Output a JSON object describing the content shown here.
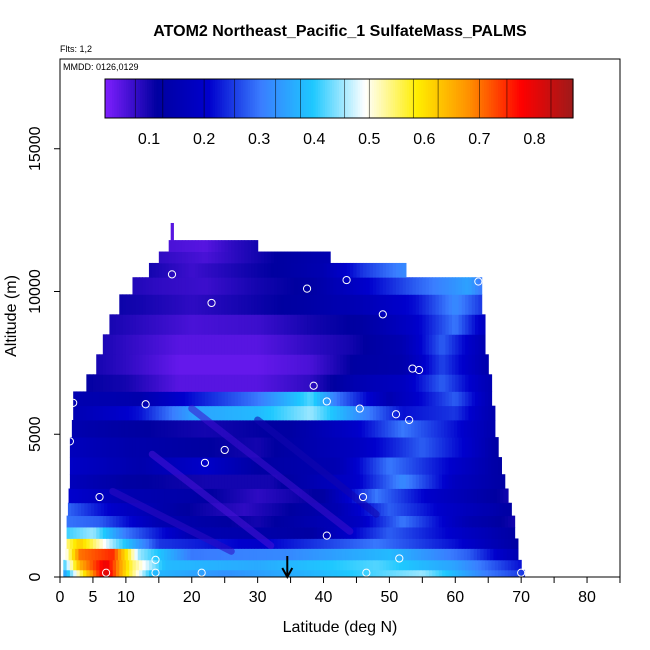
{
  "chart_data": {
    "type": "heatmap",
    "title": "ATOM2 Northeast_Pacific_1 SulfateMass_PALMS",
    "subtitle_flights": "Flts: 1,2",
    "date_label": "MMDD: 0126,0129",
    "xlabel": "Latitude (deg N)",
    "ylabel": "Altitude (m)",
    "xlim": [
      0,
      85
    ],
    "ylim": [
      0,
      17500
    ],
    "x_ticks": [
      0,
      5,
      10,
      20,
      30,
      40,
      50,
      60,
      70,
      80
    ],
    "x_minor_ticks": [
      15,
      25,
      35,
      45,
      55,
      65,
      75,
      85
    ],
    "y_ticks": [
      0,
      5000,
      10000,
      15000
    ],
    "colorbar": {
      "range": [
        0.02,
        0.87
      ],
      "ticks": [
        0.1,
        0.2,
        0.3,
        0.4,
        0.5,
        0.6,
        0.7,
        0.8
      ],
      "colors": [
        "#7f1fff",
        "#0000a0",
        "#0000cd",
        "#3a7dff",
        "#1ec8ff",
        "#ffffff",
        "#ffee00",
        "#ff9000",
        "#ff0000",
        "#9e1a1a"
      ]
    },
    "arrow_latitude": 34.5,
    "bands": [
      {
        "alt": [
          0,
          250
        ],
        "lat": [
          0.5,
          70.5
        ],
        "stops": [
          [
            0,
            0.3
          ],
          [
            4,
            0.62
          ],
          [
            7,
            0.82
          ],
          [
            10,
            0.6
          ],
          [
            14,
            0.38
          ],
          [
            25,
            0.33
          ],
          [
            40,
            0.38
          ],
          [
            55,
            0.45
          ],
          [
            65,
            0.3
          ],
          [
            70.5,
            0.25
          ]
        ]
      },
      {
        "alt": [
          250,
          600
        ],
        "lat": [
          0.5,
          70
        ],
        "stops": [
          [
            0,
            0.35
          ],
          [
            3,
            0.65
          ],
          [
            7,
            0.8
          ],
          [
            11,
            0.55
          ],
          [
            16,
            0.38
          ],
          [
            30,
            0.36
          ],
          [
            48,
            0.42
          ],
          [
            60,
            0.35
          ],
          [
            70,
            0.22
          ]
        ]
      },
      {
        "alt": [
          600,
          1000
        ],
        "lat": [
          0.8,
          69.5
        ],
        "stops": [
          [
            0,
            0.4
          ],
          [
            3,
            0.7
          ],
          [
            8,
            0.75
          ],
          [
            12,
            0.45
          ],
          [
            20,
            0.3
          ],
          [
            35,
            0.32
          ],
          [
            50,
            0.38
          ],
          [
            62,
            0.28
          ],
          [
            69.5,
            0.15
          ]
        ]
      },
      {
        "alt": [
          1000,
          1350
        ],
        "lat": [
          1,
          69.5
        ],
        "stops": [
          [
            0,
            0.5
          ],
          [
            3,
            0.62
          ],
          [
            8,
            0.45
          ],
          [
            15,
            0.25
          ],
          [
            30,
            0.2
          ],
          [
            48,
            0.3
          ],
          [
            60,
            0.22
          ],
          [
            69.5,
            0.12
          ]
        ]
      },
      {
        "alt": [
          1350,
          1750
        ],
        "lat": [
          1,
          69
        ],
        "stops": [
          [
            0,
            0.4
          ],
          [
            5,
            0.45
          ],
          [
            10,
            0.3
          ],
          [
            20,
            0.15
          ],
          [
            38,
            0.12
          ],
          [
            50,
            0.28
          ],
          [
            60,
            0.2
          ],
          [
            69,
            0.12
          ]
        ]
      },
      {
        "alt": [
          1750,
          2150
        ],
        "lat": [
          1,
          69
        ],
        "stops": [
          [
            0,
            0.3
          ],
          [
            6,
            0.28
          ],
          [
            15,
            0.15
          ],
          [
            30,
            0.1
          ],
          [
            45,
            0.18
          ],
          [
            52,
            0.3
          ],
          [
            62,
            0.15
          ],
          [
            69,
            0.1
          ]
        ]
      },
      {
        "alt": [
          2150,
          2600
        ],
        "lat": [
          1.2,
          68.5
        ],
        "stops": [
          [
            0,
            0.3
          ],
          [
            8,
            0.2
          ],
          [
            18,
            0.12
          ],
          [
            28,
            0.08
          ],
          [
            42,
            0.15
          ],
          [
            50,
            0.28
          ],
          [
            58,
            0.2
          ],
          [
            68.5,
            0.12
          ]
        ]
      },
      {
        "alt": [
          2600,
          3100
        ],
        "lat": [
          1.3,
          68
        ],
        "stops": [
          [
            0,
            0.22
          ],
          [
            10,
            0.15
          ],
          [
            20,
            0.13
          ],
          [
            30,
            0.08
          ],
          [
            40,
            0.12
          ],
          [
            48,
            0.3
          ],
          [
            56,
            0.2
          ],
          [
            68,
            0.1
          ]
        ]
      },
      {
        "alt": [
          3100,
          3600
        ],
        "lat": [
          1.5,
          67.5
        ],
        "stops": [
          [
            0,
            0.18
          ],
          [
            10,
            0.12
          ],
          [
            22,
            0.1
          ],
          [
            32,
            0.1
          ],
          [
            45,
            0.2
          ],
          [
            52,
            0.32
          ],
          [
            60,
            0.18
          ],
          [
            67.5,
            0.12
          ]
        ]
      },
      {
        "alt": [
          3600,
          4200
        ],
        "lat": [
          1.5,
          67
        ],
        "stops": [
          [
            0,
            0.2
          ],
          [
            12,
            0.14
          ],
          [
            22,
            0.2
          ],
          [
            30,
            0.12
          ],
          [
            42,
            0.15
          ],
          [
            50,
            0.3
          ],
          [
            60,
            0.2
          ],
          [
            67,
            0.12
          ]
        ]
      },
      {
        "alt": [
          4200,
          4900
        ],
        "lat": [
          1.5,
          66.5
        ],
        "stops": [
          [
            0,
            0.18
          ],
          [
            10,
            0.14
          ],
          [
            20,
            0.12
          ],
          [
            30,
            0.1
          ],
          [
            45,
            0.18
          ],
          [
            55,
            0.28
          ],
          [
            62,
            0.2
          ],
          [
            66.5,
            0.12
          ]
        ]
      },
      {
        "alt": [
          4900,
          5500
        ],
        "lat": [
          1.8,
          66
        ],
        "stops": [
          [
            0,
            0.15
          ],
          [
            10,
            0.12
          ],
          [
            22,
            0.1
          ],
          [
            35,
            0.12
          ],
          [
            45,
            0.2
          ],
          [
            52,
            0.3
          ],
          [
            60,
            0.22
          ],
          [
            66,
            0.14
          ]
        ]
      },
      {
        "alt": [
          5500,
          6000
        ],
        "lat": [
          2,
          66
        ],
        "stops": [
          [
            0,
            0.14
          ],
          [
            12,
            0.22
          ],
          [
            20,
            0.35
          ],
          [
            30,
            0.38
          ],
          [
            38,
            0.45
          ],
          [
            44,
            0.35
          ],
          [
            52,
            0.22
          ],
          [
            60,
            0.25
          ],
          [
            66,
            0.14
          ]
        ]
      },
      {
        "alt": [
          6000,
          6500
        ],
        "lat": [
          2,
          65.5
        ],
        "stops": [
          [
            0,
            0.15
          ],
          [
            12,
            0.14
          ],
          [
            20,
            0.22
          ],
          [
            30,
            0.3
          ],
          [
            38,
            0.42
          ],
          [
            42,
            0.3
          ],
          [
            50,
            0.15
          ],
          [
            60,
            0.28
          ],
          [
            65.5,
            0.15
          ]
        ]
      },
      {
        "alt": [
          6500,
          7100
        ],
        "lat": [
          4,
          65.5
        ],
        "stops": [
          [
            0,
            0.12
          ],
          [
            10,
            0.1
          ],
          [
            18,
            0.05
          ],
          [
            30,
            0.05
          ],
          [
            38,
            0.08
          ],
          [
            45,
            0.15
          ],
          [
            52,
            0.18
          ],
          [
            58,
            0.28
          ],
          [
            65.5,
            0.15
          ]
        ]
      },
      {
        "alt": [
          7100,
          7800
        ],
        "lat": [
          5.5,
          65
        ],
        "stops": [
          [
            0,
            0.12
          ],
          [
            10,
            0.08
          ],
          [
            18,
            0.04
          ],
          [
            30,
            0.04
          ],
          [
            38,
            0.06
          ],
          [
            45,
            0.12
          ],
          [
            52,
            0.14
          ],
          [
            58,
            0.26
          ],
          [
            65,
            0.14
          ]
        ]
      },
      {
        "alt": [
          7800,
          8500
        ],
        "lat": [
          6.5,
          64.5
        ],
        "stops": [
          [
            0,
            0.12
          ],
          [
            10,
            0.08
          ],
          [
            18,
            0.05
          ],
          [
            30,
            0.05
          ],
          [
            38,
            0.08
          ],
          [
            44,
            0.1
          ],
          [
            52,
            0.15
          ],
          [
            58,
            0.28
          ],
          [
            64.5,
            0.15
          ]
        ]
      },
      {
        "alt": [
          8500,
          9200
        ],
        "lat": [
          7.5,
          64.5
        ],
        "stops": [
          [
            0,
            0.12
          ],
          [
            10,
            0.09
          ],
          [
            20,
            0.06
          ],
          [
            30,
            0.07
          ],
          [
            38,
            0.1
          ],
          [
            46,
            0.12
          ],
          [
            54,
            0.2
          ],
          [
            60,
            0.3
          ],
          [
            64.5,
            0.18
          ]
        ]
      },
      {
        "alt": [
          9200,
          9900
        ],
        "lat": [
          9,
          64
        ],
        "stops": [
          [
            0,
            0.12
          ],
          [
            12,
            0.1
          ],
          [
            20,
            0.08
          ],
          [
            28,
            0.1
          ],
          [
            36,
            0.12
          ],
          [
            46,
            0.16
          ],
          [
            54,
            0.22
          ],
          [
            60,
            0.32
          ],
          [
            64,
            0.25
          ]
        ]
      },
      {
        "alt": [
          9900,
          10500
        ],
        "lat": [
          11,
          64
        ],
        "stops": [
          [
            0,
            0.12
          ],
          [
            15,
            0.08
          ],
          [
            22,
            0.07
          ],
          [
            30,
            0.1
          ],
          [
            38,
            0.12
          ],
          [
            46,
            0.2
          ],
          [
            54,
            0.28
          ],
          [
            62,
            0.35
          ],
          [
            64,
            0.3
          ]
        ]
      },
      {
        "alt": [
          10500,
          11000
        ],
        "lat": [
          13.5,
          52.5
        ],
        "stops": [
          [
            13.5,
            0.1
          ],
          [
            20,
            0.07
          ],
          [
            28,
            0.1
          ],
          [
            34,
            0.12
          ],
          [
            40,
            0.15
          ],
          [
            46,
            0.25
          ],
          [
            52.5,
            0.32
          ]
        ]
      },
      {
        "alt": [
          11000,
          11400
        ],
        "lat": [
          15,
          41
        ],
        "stops": [
          [
            15,
            0.08
          ],
          [
            22,
            0.06
          ],
          [
            28,
            0.09
          ],
          [
            34,
            0.12
          ],
          [
            41,
            0.15
          ]
        ]
      },
      {
        "alt": [
          11400,
          11800
        ],
        "lat": [
          16.5,
          30
        ],
        "stops": [
          [
            16.5,
            0.06
          ],
          [
            22,
            0.05
          ],
          [
            26,
            0.08
          ],
          [
            30,
            0.1
          ]
        ]
      },
      {
        "alt": [
          11800,
          12400
        ],
        "lat": [
          16.8,
          17.2
        ],
        "stops": [
          [
            16.8,
            0.05
          ],
          [
            17.2,
            0.05
          ]
        ]
      }
    ],
    "diagonal_streaks": [
      {
        "from": [
          14,
          4300
        ],
        "to": [
          32,
          1100
        ],
        "value": 0.06
      },
      {
        "from": [
          20,
          5900
        ],
        "to": [
          44,
          1600
        ],
        "value": 0.07
      },
      {
        "from": [
          30,
          5500
        ],
        "to": [
          48,
          2200
        ],
        "value": 0.1
      },
      {
        "from": [
          8,
          3000
        ],
        "to": [
          26,
          900
        ],
        "value": 0.08
      }
    ],
    "circles": [
      {
        "lat": 17,
        "alt": 10600
      },
      {
        "lat": 23,
        "alt": 9600
      },
      {
        "lat": 37.5,
        "alt": 10100
      },
      {
        "lat": 43.5,
        "alt": 10400
      },
      {
        "lat": 49,
        "alt": 9200
      },
      {
        "lat": 63.5,
        "alt": 10350
      },
      {
        "lat": 53.5,
        "alt": 7300
      },
      {
        "lat": 54.5,
        "alt": 7250
      },
      {
        "lat": 38.5,
        "alt": 6700
      },
      {
        "lat": 2,
        "alt": 6100
      },
      {
        "lat": 13,
        "alt": 6050
      },
      {
        "lat": 40.5,
        "alt": 6150
      },
      {
        "lat": 45.5,
        "alt": 5900
      },
      {
        "lat": 51,
        "alt": 5700
      },
      {
        "lat": 53,
        "alt": 5500
      },
      {
        "lat": 1.5,
        "alt": 4750
      },
      {
        "lat": 25,
        "alt": 4450
      },
      {
        "lat": 22,
        "alt": 4000
      },
      {
        "lat": 6,
        "alt": 2800
      },
      {
        "lat": 46,
        "alt": 2800
      },
      {
        "lat": 40.5,
        "alt": 1450
      },
      {
        "lat": 14.5,
        "alt": 600
      },
      {
        "lat": 51.5,
        "alt": 650
      },
      {
        "lat": 7,
        "alt": 150
      },
      {
        "lat": 14.5,
        "alt": 150
      },
      {
        "lat": 21.5,
        "alt": 150
      },
      {
        "lat": 46.5,
        "alt": 150
      },
      {
        "lat": 70,
        "alt": 150
      }
    ]
  }
}
